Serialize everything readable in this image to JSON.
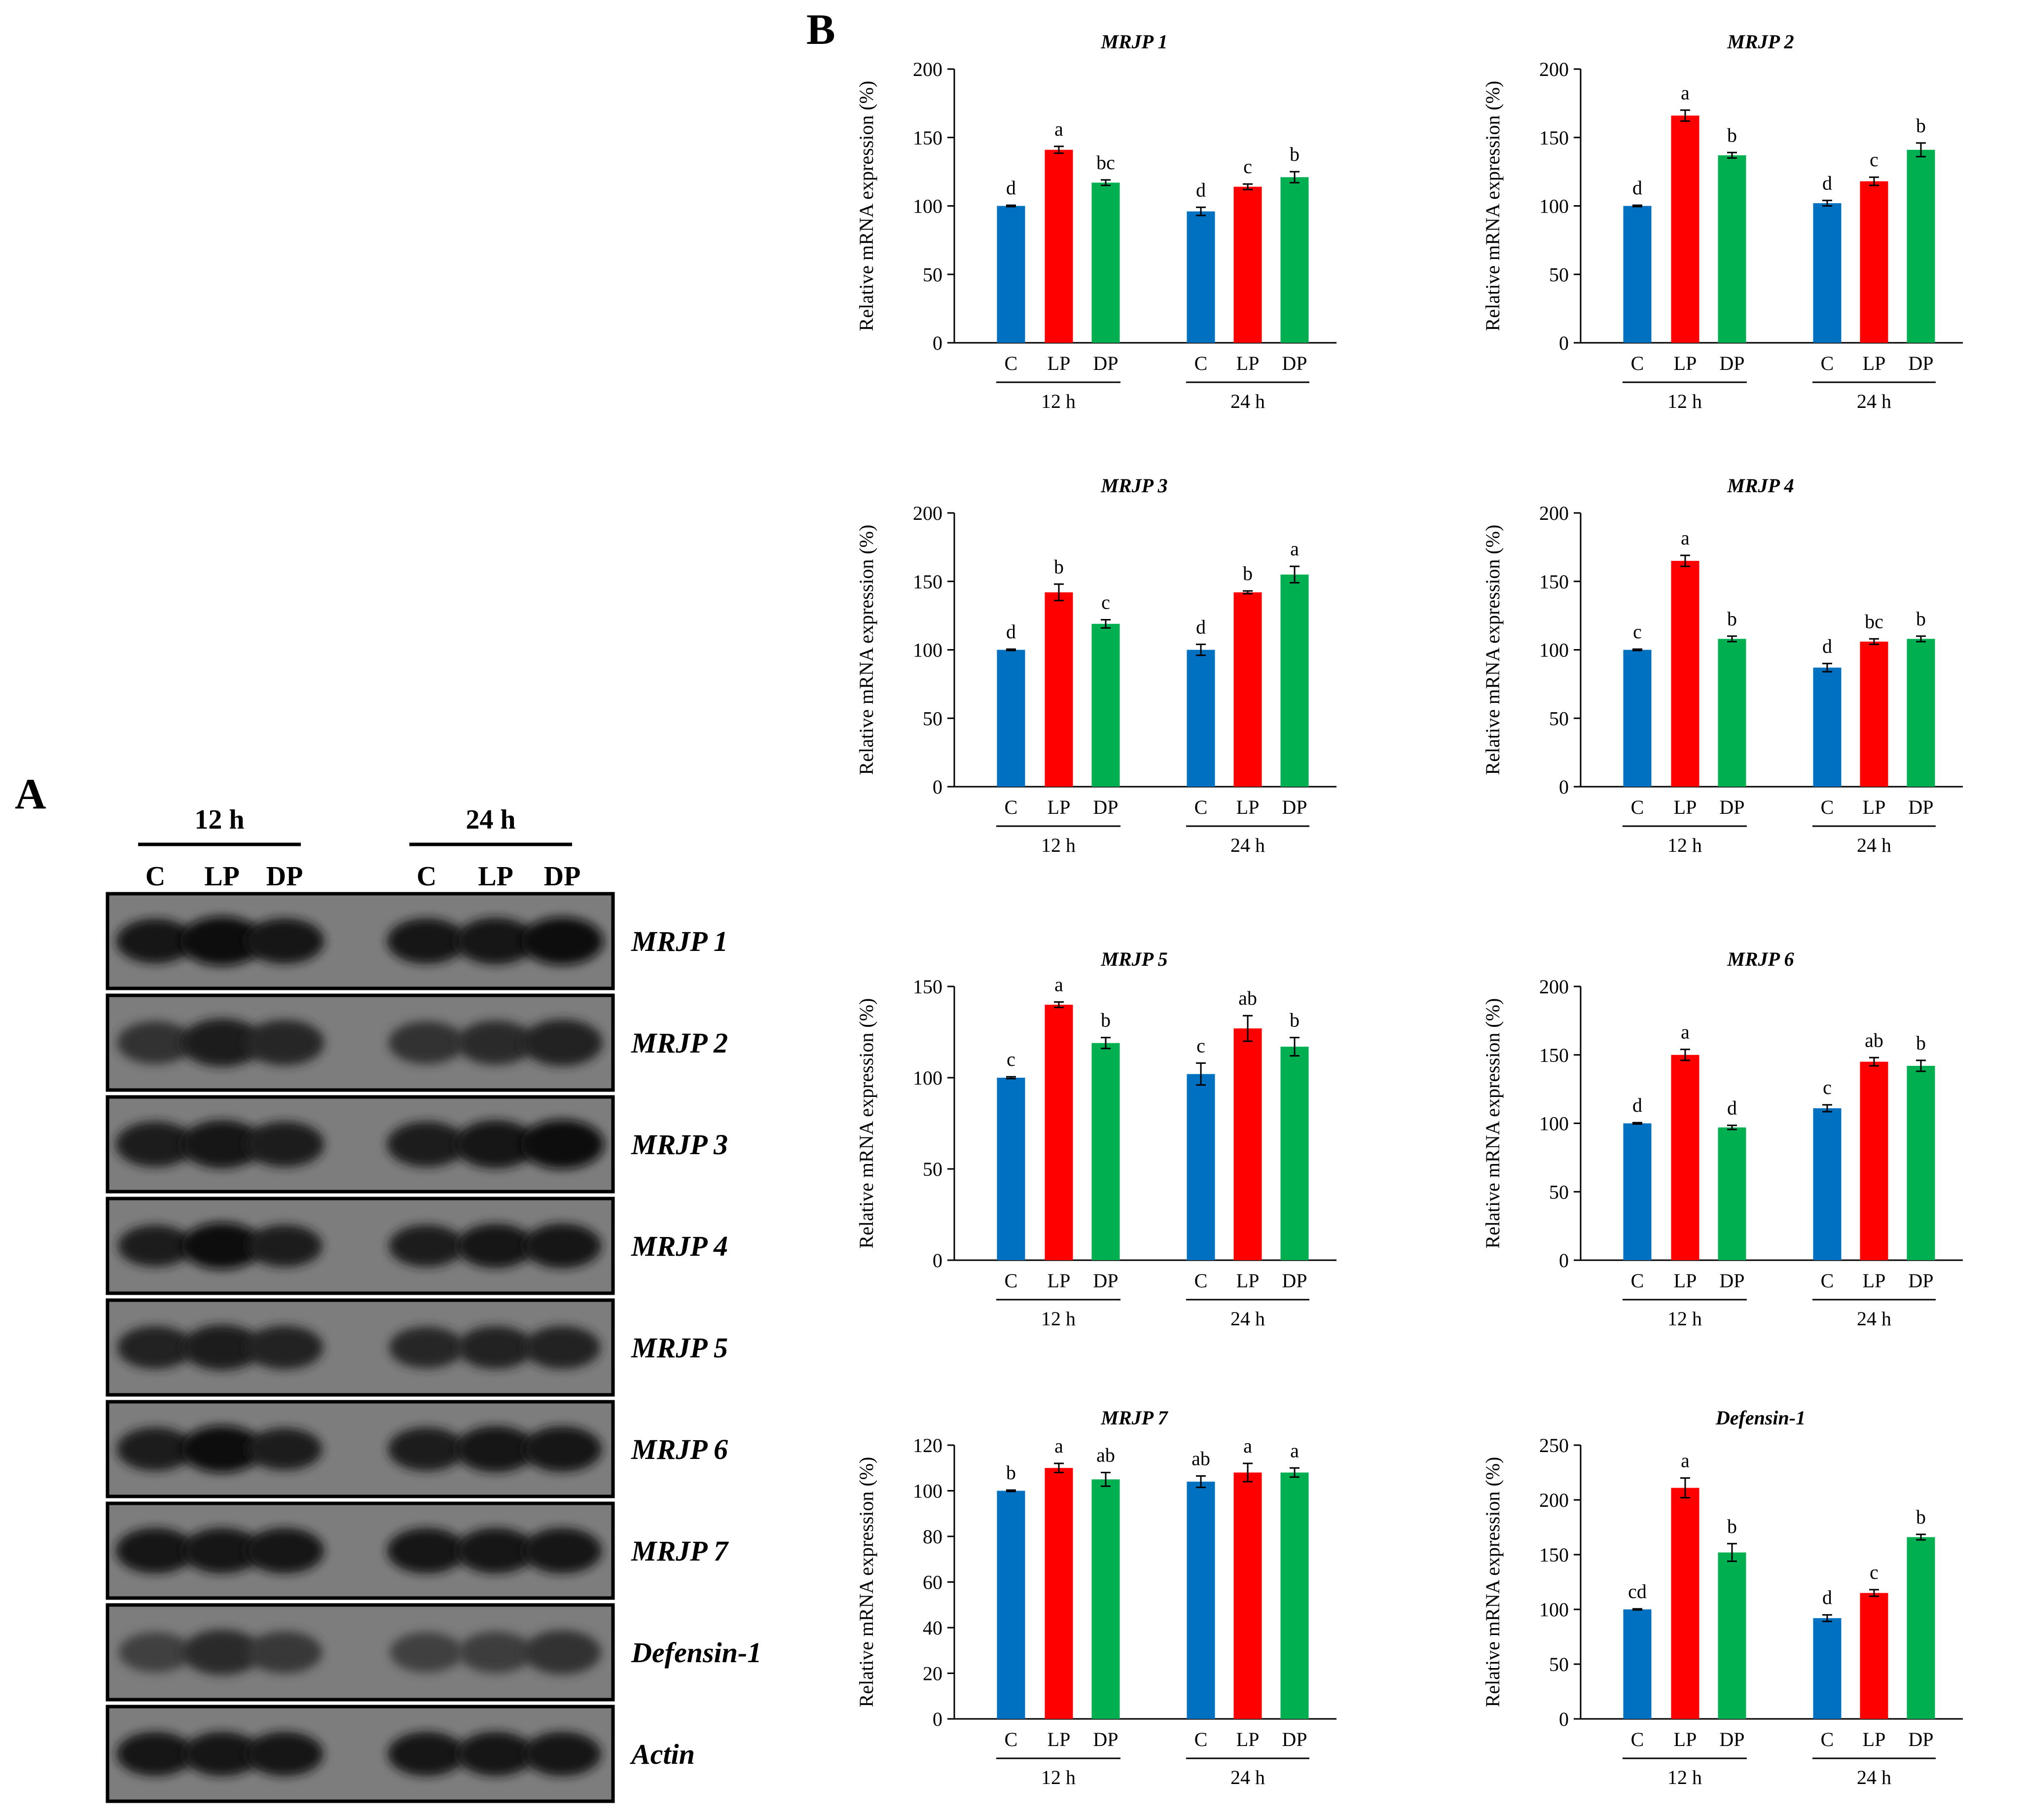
{
  "panel_labels": {
    "a": "A",
    "b": "B"
  },
  "colors": {
    "C": "#0070C0",
    "LP": "#FF0000",
    "DP": "#00B050"
  },
  "blot": {
    "time_labels": [
      "12 h",
      "24 h"
    ],
    "lane_labels": [
      "C",
      "LP",
      "DP",
      "C",
      "LP",
      "DP"
    ],
    "genes": [
      {
        "name": "MRJP 1",
        "intensity": [
          0.85,
          1.0,
          0.85,
          0.85,
          0.9,
          0.95
        ],
        "size": [
          0.82,
          1.0,
          0.85,
          0.85,
          0.9,
          0.95
        ]
      },
      {
        "name": "MRJP 2",
        "intensity": [
          0.55,
          0.75,
          0.65,
          0.55,
          0.6,
          0.7
        ],
        "size": [
          0.75,
          0.95,
          0.85,
          0.75,
          0.8,
          0.9
        ]
      },
      {
        "name": "MRJP 3",
        "intensity": [
          0.8,
          0.9,
          0.8,
          0.8,
          0.9,
          1.0
        ],
        "size": [
          0.85,
          0.95,
          0.85,
          0.85,
          0.95,
          1.0
        ]
      },
      {
        "name": "MRJP 4",
        "intensity": [
          0.75,
          0.95,
          0.75,
          0.75,
          0.85,
          0.85
        ],
        "size": [
          0.7,
          0.9,
          0.72,
          0.72,
          0.8,
          0.82
        ]
      },
      {
        "name": "MRJP 5",
        "intensity": [
          0.7,
          0.8,
          0.7,
          0.65,
          0.7,
          0.7
        ],
        "size": [
          0.75,
          0.85,
          0.78,
          0.7,
          0.75,
          0.75
        ]
      },
      {
        "name": "MRJP 6",
        "intensity": [
          0.8,
          0.95,
          0.75,
          0.8,
          0.9,
          0.9
        ],
        "size": [
          0.78,
          0.92,
          0.72,
          0.78,
          0.88,
          0.85
        ]
      },
      {
        "name": "MRJP 7",
        "intensity": [
          0.85,
          0.85,
          0.85,
          0.85,
          0.85,
          0.85
        ],
        "size": [
          0.85,
          0.85,
          0.85,
          0.85,
          0.85,
          0.85
        ]
      },
      {
        "name": "Defensin-1",
        "intensity": [
          0.35,
          0.6,
          0.45,
          0.35,
          0.4,
          0.55
        ],
        "size": [
          0.65,
          0.85,
          0.72,
          0.65,
          0.7,
          0.8
        ]
      },
      {
        "name": "Actin",
        "intensity": [
          0.85,
          0.85,
          0.85,
          0.85,
          0.85,
          0.85
        ],
        "size": [
          0.8,
          0.8,
          0.8,
          0.8,
          0.8,
          0.8
        ]
      }
    ]
  },
  "chart_data": [
    {
      "type": "bar",
      "title": "MRJP 1",
      "ylabel": "Relative mRNA expression (%)",
      "ylim": [
        0,
        200
      ],
      "yticks": [
        0,
        50,
        100,
        150,
        200
      ],
      "groups": [
        "12 h",
        "24 h"
      ],
      "categories": [
        "C",
        "LP",
        "DP"
      ],
      "series": [
        {
          "name": "12 h",
          "values": [
            100,
            141,
            117
          ],
          "errors": [
            0.5,
            2.5,
            2
          ],
          "letters": [
            "d",
            "a",
            "bc"
          ]
        },
        {
          "name": "24 h",
          "values": [
            96,
            114,
            121
          ],
          "errors": [
            3,
            2,
            4
          ],
          "letters": [
            "d",
            "c",
            "b"
          ]
        }
      ]
    },
    {
      "type": "bar",
      "title": "MRJP 2",
      "ylabel": "Relative mRNA expression (%)",
      "ylim": [
        0,
        200
      ],
      "yticks": [
        0,
        50,
        100,
        150,
        200
      ],
      "groups": [
        "12 h",
        "24 h"
      ],
      "categories": [
        "C",
        "LP",
        "DP"
      ],
      "series": [
        {
          "name": "12 h",
          "values": [
            100,
            166,
            137
          ],
          "errors": [
            0.5,
            4,
            2
          ],
          "letters": [
            "d",
            "a",
            "b"
          ]
        },
        {
          "name": "24 h",
          "values": [
            102,
            118,
            141
          ],
          "errors": [
            2,
            3,
            5
          ],
          "letters": [
            "d",
            "c",
            "b"
          ]
        }
      ]
    },
    {
      "type": "bar",
      "title": "MRJP 3",
      "ylabel": "Relative mRNA expression (%)",
      "ylim": [
        0,
        200
      ],
      "yticks": [
        0,
        50,
        100,
        150,
        200
      ],
      "groups": [
        "12 h",
        "24 h"
      ],
      "categories": [
        "C",
        "LP",
        "DP"
      ],
      "series": [
        {
          "name": "12 h",
          "values": [
            100,
            142,
            119
          ],
          "errors": [
            0.5,
            6,
            3
          ],
          "letters": [
            "d",
            "b",
            "c"
          ]
        },
        {
          "name": "24 h",
          "values": [
            100,
            142,
            155
          ],
          "errors": [
            4,
            1,
            6
          ],
          "letters": [
            "d",
            "b",
            "a"
          ]
        }
      ]
    },
    {
      "type": "bar",
      "title": "MRJP 4",
      "ylabel": "Relative mRNA expression (%)",
      "ylim": [
        0,
        200
      ],
      "yticks": [
        0,
        50,
        100,
        150,
        200
      ],
      "groups": [
        "12 h",
        "24 h"
      ],
      "categories": [
        "C",
        "LP",
        "DP"
      ],
      "series": [
        {
          "name": "12 h",
          "values": [
            100,
            165,
            108
          ],
          "errors": [
            0.5,
            4,
            2
          ],
          "letters": [
            "c",
            "a",
            "b"
          ]
        },
        {
          "name": "24 h",
          "values": [
            87,
            106,
            108
          ],
          "errors": [
            3,
            2,
            2
          ],
          "letters": [
            "d",
            "bc",
            "b"
          ]
        }
      ]
    },
    {
      "type": "bar",
      "title": "MRJP 5",
      "ylabel": "Relative mRNA expression (%)",
      "ylim": [
        0,
        150
      ],
      "yticks": [
        0,
        50,
        100,
        150
      ],
      "groups": [
        "12 h",
        "24 h"
      ],
      "categories": [
        "C",
        "LP",
        "DP"
      ],
      "series": [
        {
          "name": "12 h",
          "values": [
            100,
            140,
            119
          ],
          "errors": [
            0.5,
            1.5,
            3
          ],
          "letters": [
            "c",
            "a",
            "b"
          ]
        },
        {
          "name": "24 h",
          "values": [
            102,
            127,
            117
          ],
          "errors": [
            6,
            7,
            5
          ],
          "letters": [
            "c",
            "ab",
            "b"
          ]
        }
      ]
    },
    {
      "type": "bar",
      "title": "MRJP 6",
      "ylabel": "Relative mRNA expression (%)",
      "ylim": [
        0,
        200
      ],
      "yticks": [
        0,
        50,
        100,
        150,
        200
      ],
      "groups": [
        "12 h",
        "24 h"
      ],
      "categories": [
        "C",
        "LP",
        "DP"
      ],
      "series": [
        {
          "name": "12 h",
          "values": [
            100,
            150,
            97
          ],
          "errors": [
            0.5,
            4,
            1.5
          ],
          "letters": [
            "d",
            "a",
            "d"
          ]
        },
        {
          "name": "24 h",
          "values": [
            111,
            145,
            142
          ],
          "errors": [
            2.5,
            3,
            4
          ],
          "letters": [
            "c",
            "ab",
            "b"
          ]
        }
      ]
    },
    {
      "type": "bar",
      "title": "MRJP 7",
      "ylabel": "Relative mRNA expression (%)",
      "ylim": [
        0,
        120
      ],
      "yticks": [
        0,
        20,
        40,
        60,
        80,
        100,
        120
      ],
      "groups": [
        "12 h",
        "24 h"
      ],
      "categories": [
        "C",
        "LP",
        "DP"
      ],
      "series": [
        {
          "name": "12 h",
          "values": [
            100,
            110,
            105
          ],
          "errors": [
            0.3,
            2,
            3
          ],
          "letters": [
            "b",
            "a",
            "ab"
          ]
        },
        {
          "name": "24 h",
          "values": [
            104,
            108,
            108
          ],
          "errors": [
            2.5,
            4,
            2
          ],
          "letters": [
            "ab",
            "a",
            "a"
          ]
        }
      ]
    },
    {
      "type": "bar",
      "title": "Defensin-1",
      "ylabel": "Relative mRNA expression (%)",
      "ylim": [
        0,
        250
      ],
      "yticks": [
        0,
        50,
        100,
        150,
        200,
        250
      ],
      "groups": [
        "12 h",
        "24 h"
      ],
      "categories": [
        "C",
        "LP",
        "DP"
      ],
      "series": [
        {
          "name": "12 h",
          "values": [
            100,
            211,
            152
          ],
          "errors": [
            0.5,
            9,
            8
          ],
          "letters": [
            "cd",
            "a",
            "b"
          ]
        },
        {
          "name": "24 h",
          "values": [
            92,
            115,
            166
          ],
          "errors": [
            3,
            3,
            2.5
          ],
          "letters": [
            "d",
            "c",
            "b"
          ]
        }
      ]
    }
  ]
}
